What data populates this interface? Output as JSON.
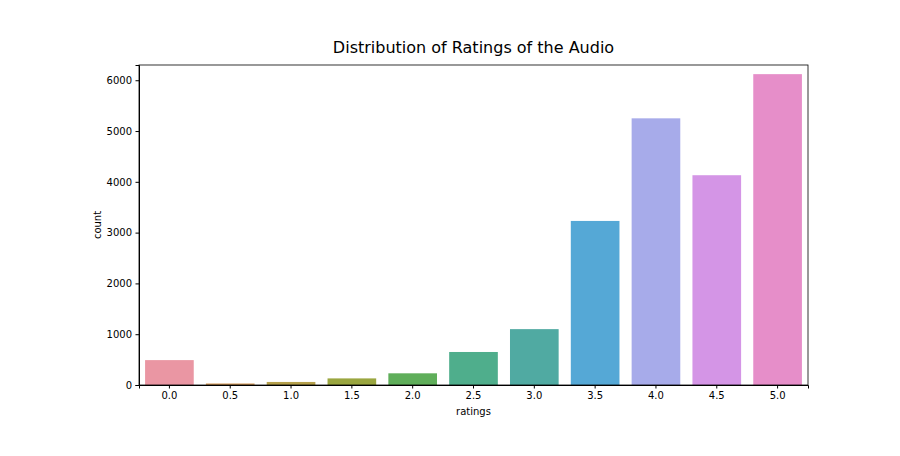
{
  "chart_data": {
    "type": "bar",
    "title": "Distribution of Ratings of the Audio",
    "x_label": "ratings",
    "y_label": "count",
    "categories": [
      "0.0",
      "0.5",
      "1.0",
      "1.5",
      "2.0",
      "2.5",
      "3.0",
      "3.5",
      "4.0",
      "4.5",
      "5.0"
    ],
    "values": [
      490,
      30,
      60,
      130,
      230,
      650,
      1100,
      3230,
      5250,
      4130,
      6120
    ],
    "colors": [
      "#ea96a3",
      "#d69b5a",
      "#b6a14c",
      "#9aa640",
      "#5fae5a",
      "#4fae8c",
      "#50aaa2",
      "#55a8d6",
      "#a7abea",
      "#d495e6",
      "#e68ec9"
    ],
    "ylim": [
      0,
      6300
    ],
    "yticks": [
      0,
      1000,
      2000,
      3000,
      4000,
      5000,
      6000
    ],
    "grid": false
  }
}
